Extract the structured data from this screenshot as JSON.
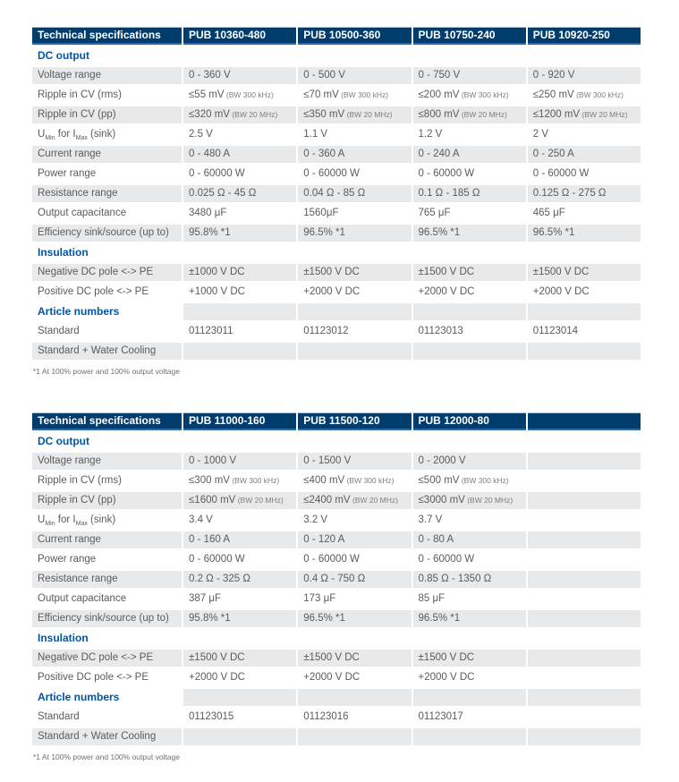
{
  "theme": {
    "header_bg": "#003c6e",
    "header_text": "#ffffff",
    "header_underline": "#2a6ca7",
    "section_text": "#0056a4",
    "row_shade": "#e8e9ea",
    "body_text": "#5a5b5e",
    "note_text": "#7d7e80"
  },
  "tables": [
    {
      "name": "pub-series-specs-group-1",
      "header": [
        "Technical specifications",
        "PUB 10360-480",
        "PUB 10500-360",
        "PUB 10750-240",
        "PUB 10920-250"
      ],
      "footnote": "*1 At 100% power and 100% output voltage",
      "rows": [
        {
          "type": "section",
          "label": "DC output",
          "shade": false
        },
        {
          "type": "data",
          "label": "Voltage range",
          "shade": true,
          "values": [
            "0 - 360 V",
            "0 - 500 V",
            "0 - 750 V",
            "0 - 920 V"
          ]
        },
        {
          "type": "data",
          "label": "Ripple in CV (rms)",
          "shade": false,
          "values": [
            {
              "main": "≤55 mV",
              "note": "(BW 300 kHz)"
            },
            {
              "main": "≤70 mV",
              "note": "(BW 300 kHz)"
            },
            {
              "main": "≤200 mV",
              "note": "(BW 300 kHz)"
            },
            {
              "main": "≤250 mV",
              "note": "(BW 300 kHz)"
            }
          ]
        },
        {
          "type": "data",
          "label": "Ripple in CV (pp)",
          "shade": true,
          "values": [
            {
              "main": "≤320 mV",
              "note": "(BW 20 MHz)"
            },
            {
              "main": "≤350 mV",
              "note": "(BW 20 MHz)"
            },
            {
              "main": "≤800 mV",
              "note": "(BW 20 MHz)"
            },
            {
              "main": "≤1200 mV",
              "note": "(BW 20 MHz)"
            }
          ]
        },
        {
          "type": "data",
          "shade": false,
          "label_parts": [
            {
              "t": "U"
            },
            {
              "t": "Min",
              "sub": true
            },
            {
              "t": " for I"
            },
            {
              "t": "Max",
              "sub": true
            },
            {
              "t": " (sink)"
            }
          ],
          "values": [
            "2.5 V",
            "1.1 V",
            "1.2 V",
            "2 V"
          ]
        },
        {
          "type": "data",
          "label": "Current range",
          "shade": true,
          "values": [
            "0 - 480 A",
            "0 - 360 A",
            "0 - 240 A",
            "0 - 250 A"
          ]
        },
        {
          "type": "data",
          "label": "Power range",
          "shade": false,
          "values": [
            "0 - 60000 W",
            "0 - 60000 W",
            "0 - 60000 W",
            "0 - 60000 W"
          ]
        },
        {
          "type": "data",
          "label": "Resistance range",
          "shade": true,
          "values": [
            "0.025 Ω - 45 Ω",
            "0.04 Ω - 85 Ω",
            "0.1 Ω - 185 Ω",
            "0.125 Ω - 275 Ω"
          ]
        },
        {
          "type": "data",
          "label": "Output capacitance",
          "shade": false,
          "values": [
            "3480 μF",
            "1560μF",
            "765 μF",
            "465 μF"
          ]
        },
        {
          "type": "data",
          "label": "Efficiency sink/source (up to)",
          "shade": true,
          "values": [
            "95.8% *1",
            "96.5% *1",
            "96.5% *1",
            "96.5% *1"
          ]
        },
        {
          "type": "section",
          "label": "Insulation",
          "shade": false
        },
        {
          "type": "data",
          "label": "Negative DC pole <-> PE",
          "shade": true,
          "values": [
            "±1000 V DC",
            "±1500 V DC",
            "±1500 V DC",
            "±1500 V DC"
          ]
        },
        {
          "type": "data",
          "label": "Positive DC pole <-> PE",
          "shade": false,
          "values": [
            "+1000 V DC",
            "+2000 V DC",
            "+2000 V DC",
            "+2000 V DC"
          ]
        },
        {
          "type": "section",
          "label": "Article numbers",
          "shade": true
        },
        {
          "type": "data",
          "label": "Standard",
          "shade": false,
          "values": [
            "01123011",
            "01123012",
            "01123013",
            "01123014"
          ]
        },
        {
          "type": "data",
          "label": "Standard + Water Cooling",
          "shade": true,
          "values": [
            "",
            "",
            "",
            ""
          ]
        }
      ]
    },
    {
      "name": "pub-series-specs-group-2",
      "header": [
        "Technical specifications",
        "PUB 11000-160",
        "PUB 11500-120",
        "PUB 12000-80",
        ""
      ],
      "footnote": "*1 At 100% power and 100% output voltage",
      "rows": [
        {
          "type": "section",
          "label": "DC output",
          "shade": false
        },
        {
          "type": "data",
          "label": "Voltage range",
          "shade": true,
          "values": [
            "0 - 1000 V",
            "0 - 1500 V",
            "0 - 2000 V",
            ""
          ]
        },
        {
          "type": "data",
          "label": "Ripple in CV (rms)",
          "shade": false,
          "values": [
            {
              "main": "≤300 mV",
              "note": "(BW 300 kHz)"
            },
            {
              "main": "≤400 mV",
              "note": "(BW 300 kHz)"
            },
            {
              "main": "≤500 mV",
              "note": "(BW 300 kHz)"
            },
            ""
          ]
        },
        {
          "type": "data",
          "label": "Ripple in CV (pp)",
          "shade": true,
          "values": [
            {
              "main": "≤1600 mV",
              "note": "(BW 20 MHz)"
            },
            {
              "main": "≤2400 mV",
              "note": "(BW 20 MHz)"
            },
            {
              "main": "≤3000 mV",
              "note": "(BW 20 MHz)"
            },
            ""
          ]
        },
        {
          "type": "data",
          "shade": false,
          "label_parts": [
            {
              "t": "U"
            },
            {
              "t": "Min",
              "sub": true
            },
            {
              "t": " for I"
            },
            {
              "t": "Max",
              "sub": true
            },
            {
              "t": " (sink)"
            }
          ],
          "values": [
            "3.4 V",
            "3.2 V",
            "3.7 V",
            ""
          ]
        },
        {
          "type": "data",
          "label": "Current range",
          "shade": true,
          "values": [
            "0 - 160 A",
            "0 - 120 A",
            "0 - 80 A",
            ""
          ]
        },
        {
          "type": "data",
          "label": "Power range",
          "shade": false,
          "values": [
            "0 - 60000 W",
            "0 - 60000 W",
            "0 - 60000 W",
            ""
          ]
        },
        {
          "type": "data",
          "label": "Resistance range",
          "shade": true,
          "values": [
            "0.2 Ω - 325 Ω",
            "0.4 Ω - 750 Ω",
            "0.85 Ω - 1350 Ω",
            ""
          ]
        },
        {
          "type": "data",
          "label": "Output capacitance",
          "shade": false,
          "values": [
            "387 μF",
            "173 μF",
            "85 μF",
            ""
          ]
        },
        {
          "type": "data",
          "label": "Efficiency sink/source (up to)",
          "shade": true,
          "values": [
            "95.8% *1",
            "96.5% *1",
            "96.5% *1",
            ""
          ]
        },
        {
          "type": "section",
          "label": "Insulation",
          "shade": false
        },
        {
          "type": "data",
          "label": "Negative DC pole <-> PE",
          "shade": true,
          "values": [
            "±1500 V DC",
            "±1500 V DC",
            "±1500 V DC",
            ""
          ]
        },
        {
          "type": "data",
          "label": "Positive DC pole <-> PE",
          "shade": false,
          "values": [
            "+2000 V DC",
            "+2000 V DC",
            "+2000 V DC",
            ""
          ]
        },
        {
          "type": "section",
          "label": "Article numbers",
          "shade": true
        },
        {
          "type": "data",
          "label": "Standard",
          "shade": false,
          "values": [
            "01123015",
            "01123016",
            "01123017",
            ""
          ]
        },
        {
          "type": "data",
          "label": "Standard + Water Cooling",
          "shade": true,
          "values": [
            "",
            "",
            "",
            ""
          ]
        }
      ]
    }
  ]
}
